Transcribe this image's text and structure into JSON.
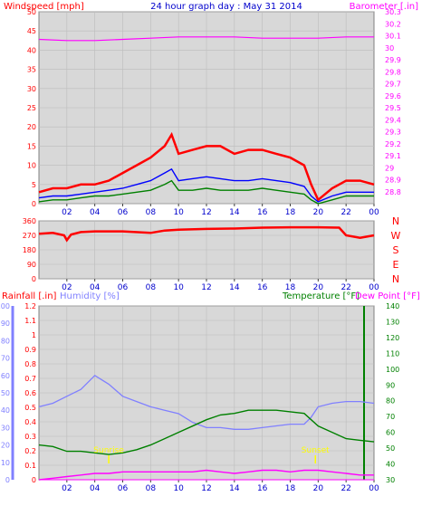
{
  "chart_data": [
    {
      "type": "line",
      "panel": "wind-baro",
      "title": "24 hour graph day : May 31 2014",
      "ylabel_left": "Windspeed [mph]",
      "ylabel_right": "Barometer [.in]",
      "ylim_left": [
        0,
        50
      ],
      "ylim_right": [
        28.7,
        30.3
      ],
      "yticks_left": [
        "0",
        "5",
        "10",
        "15",
        "20",
        "25",
        "30",
        "35",
        "40",
        "45",
        "50"
      ],
      "yticks_right": [
        "28.8",
        "28.9",
        "29",
        "29.1",
        "29.2",
        "29.3",
        "29.4",
        "29.5",
        "29.6",
        "29.7",
        "29.8",
        "29.9",
        "30",
        "30.1",
        "30.2",
        "30.3"
      ],
      "x_ticks": [
        "02",
        "04",
        "06",
        "08",
        "10",
        "12",
        "14",
        "16",
        "18",
        "20",
        "22",
        "00"
      ],
      "colors": {
        "gust": "#ff0000",
        "average": "#0000ff",
        "wind": "#008000",
        "barometer": "#ff00ff"
      },
      "barometer": {
        "x": [
          0,
          2,
          4,
          6,
          8,
          10,
          12,
          14,
          16,
          18,
          20,
          22,
          24
        ],
        "values": [
          30.07,
          30.06,
          30.06,
          30.07,
          30.08,
          30.09,
          30.09,
          30.09,
          30.08,
          30.08,
          30.08,
          30.09,
          30.09
        ]
      },
      "series": [
        {
          "x": [
            0,
            1,
            2,
            3,
            4,
            5,
            6,
            7,
            8,
            9,
            9.5,
            10,
            11,
            12,
            13,
            14,
            15,
            16,
            17,
            18,
            19,
            19.5,
            20,
            21,
            22,
            23,
            24
          ],
          "values": [
            3,
            4,
            4,
            5,
            5,
            6,
            8,
            10,
            12,
            15,
            18,
            13,
            14,
            15,
            15,
            13,
            14,
            14,
            13,
            12,
            10,
            5,
            1,
            4,
            6,
            6,
            5
          ]
        },
        {
          "x": [
            0,
            1,
            2,
            3,
            4,
            5,
            6,
            7,
            8,
            9,
            9.5,
            10,
            11,
            12,
            13,
            14,
            15,
            16,
            17,
            18,
            19,
            19.5,
            20,
            21,
            22,
            23,
            24
          ],
          "values": [
            1.5,
            2,
            2,
            2.5,
            3,
            3.5,
            4,
            5,
            6,
            8,
            9,
            6,
            6.5,
            7,
            6.5,
            6,
            6,
            6.5,
            6,
            5.5,
            4.5,
            2,
            0.5,
            2,
            3,
            3,
            3
          ]
        },
        {
          "x": [
            0,
            1,
            2,
            3,
            4,
            5,
            6,
            7,
            8,
            9,
            9.5,
            10,
            11,
            12,
            13,
            14,
            15,
            16,
            17,
            18,
            19,
            19.5,
            20,
            21,
            22,
            23,
            24
          ],
          "values": [
            0.5,
            1,
            1,
            1.5,
            2,
            2,
            2.5,
            3,
            3.5,
            5,
            6,
            3.5,
            3.5,
            4,
            3.5,
            3.5,
            3.5,
            4,
            3.5,
            3,
            2.5,
            1,
            0,
            1,
            2,
            2,
            2
          ]
        }
      ]
    },
    {
      "type": "line",
      "panel": "direction",
      "ylim": [
        0,
        360
      ],
      "yticks": [
        "0",
        "90",
        "180",
        "270",
        "360"
      ],
      "compass_labels": [
        "N",
        "W",
        "S",
        "E",
        "N"
      ],
      "x_ticks": [
        "02",
        "04",
        "06",
        "08",
        "10",
        "12",
        "14",
        "16",
        "18",
        "20",
        "22",
        "00"
      ],
      "colors": {
        "direction": "#ff0000"
      },
      "series": [
        {
          "x": [
            0,
            1,
            1.8,
            2,
            2.3,
            3,
            4,
            6,
            8,
            9,
            10,
            12,
            14,
            16,
            18,
            20,
            21.5,
            22,
            23,
            24
          ],
          "values": [
            280,
            285,
            270,
            240,
            275,
            290,
            295,
            295,
            285,
            300,
            305,
            310,
            312,
            318,
            320,
            320,
            318,
            270,
            255,
            270
          ]
        }
      ]
    },
    {
      "type": "line",
      "panel": "rain-humidity-temp",
      "label_rain": "Rainfall [.in]",
      "label_humidity": "Humidity [%]",
      "label_temperature": "Temperature [°F]",
      "label_dewpoint": "Dew Point [°F]",
      "ylim_rain": [
        0,
        1.2
      ],
      "yticks_rain": [
        "0",
        "0.1",
        "0.2",
        "0.3",
        "0.4",
        "0.5",
        "0.6",
        "0.7",
        "0.8",
        "0.9",
        "1",
        "1.1",
        "1.2"
      ],
      "ylim_humidity": [
        0,
        100
      ],
      "yticks_humidity": [
        "0",
        "10",
        "20",
        "30",
        "40",
        "50",
        "60",
        "70",
        "80",
        "90",
        "100"
      ],
      "ylim_temp": [
        30,
        140
      ],
      "yticks_temp": [
        "30",
        "40",
        "50",
        "60",
        "70",
        "80",
        "90",
        "100",
        "110",
        "120",
        "130",
        "140"
      ],
      "x_ticks": [
        "02",
        "04",
        "06",
        "08",
        "10",
        "12",
        "14",
        "16",
        "18",
        "20",
        "22",
        "00"
      ],
      "colors": {
        "humidity": "#8080ff",
        "temperature": "#008000",
        "dewpoint": "#ff00ff",
        "rain": "#ff00ff",
        "sun_marker": "#ffff00",
        "axis_rain": "#ff0000",
        "axis_humidity": "#8080ff",
        "axis_temp": "#008000"
      },
      "sunrise_label": "Sunrise",
      "sunset_label": "Sunset",
      "sunrise_hour": 5,
      "sunset_hour": 19.8,
      "series": [
        {
          "name": "Humidity",
          "x": [
            0,
            1,
            2,
            3,
            4,
            5,
            6,
            7,
            8,
            9,
            10,
            11,
            12,
            13,
            14,
            15,
            16,
            17,
            18,
            19,
            19.5,
            20,
            21,
            22,
            23,
            24
          ],
          "values": [
            42,
            44,
            48,
            52,
            60,
            55,
            48,
            45,
            42,
            40,
            38,
            33,
            30,
            30,
            29,
            29,
            30,
            31,
            32,
            32,
            36,
            42,
            44,
            45,
            45,
            44
          ]
        },
        {
          "name": "Temperature",
          "x": [
            0,
            1,
            2,
            3,
            4,
            5,
            6,
            7,
            8,
            9,
            10,
            11,
            12,
            13,
            14,
            15,
            16,
            17,
            18,
            19,
            20,
            21,
            22,
            23,
            24
          ],
          "values": [
            52,
            51,
            48,
            48,
            47,
            46,
            47,
            49,
            52,
            56,
            60,
            64,
            68,
            71,
            72,
            74,
            74,
            74,
            73,
            72,
            64,
            60,
            56,
            55,
            54
          ]
        },
        {
          "name": "Dew Point",
          "x": [
            0,
            1,
            2,
            3,
            4,
            5,
            6,
            7,
            8,
            9,
            10,
            11,
            12,
            13,
            14,
            15,
            16,
            17,
            18,
            19,
            20,
            21,
            22,
            23,
            24
          ],
          "values": [
            30,
            31,
            32,
            33,
            34,
            34,
            35,
            35,
            35,
            35,
            35,
            35,
            36,
            35,
            34,
            35,
            36,
            36,
            35,
            36,
            36,
            35,
            34,
            33,
            33
          ]
        },
        {
          "name": "Rainfall",
          "x": [
            0,
            24
          ],
          "values": [
            0,
            0
          ]
        }
      ]
    }
  ]
}
